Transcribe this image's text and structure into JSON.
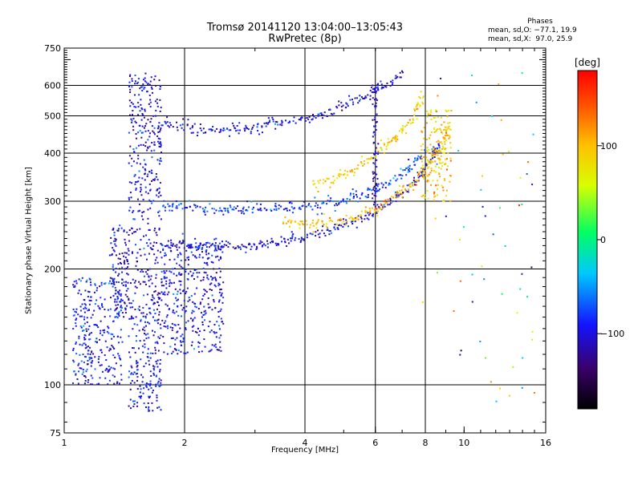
{
  "header": {
    "title_line1": "Tromsø 20141120 13:04:00–13:05:43",
    "title_line2": "RwPretec (8p)"
  },
  "phases_box": {
    "title": "Phases",
    "line1": "mean, sd,O: −77.1, 19.9",
    "line2": "mean, sd,X:  97.0, 25.9"
  },
  "colorbar": {
    "unit_label": "[deg]",
    "ticks": [
      {
        "value": 100,
        "label": "100"
      },
      {
        "value": 0,
        "label": "0"
      },
      {
        "value": -100,
        "label": "−100"
      }
    ],
    "range": [
      -180,
      180
    ]
  },
  "chart_data": {
    "type": "scatter",
    "xlabel": "Frequency [MHz]",
    "ylabel": "Stationary phase Virtual Height [km]",
    "x_scale": "log",
    "y_scale": "log",
    "xlim": [
      1,
      16
    ],
    "ylim": [
      75,
      750
    ],
    "x_ticks": [
      {
        "value": 1,
        "label": "1"
      },
      {
        "value": 2,
        "label": "2"
      },
      {
        "value": 4,
        "label": "4"
      },
      {
        "value": 6,
        "label": "6"
      },
      {
        "value": 8,
        "label": "8"
      },
      {
        "value": 10,
        "label": "10"
      },
      {
        "value": 16,
        "label": "16"
      }
    ],
    "y_ticks": [
      {
        "value": 75,
        "label": "75"
      },
      {
        "value": 100,
        "label": "100"
      },
      {
        "value": 200,
        "label": "200"
      },
      {
        "value": 300,
        "label": "300"
      },
      {
        "value": 400,
        "label": "400"
      },
      {
        "value": 500,
        "label": "500"
      },
      {
        "value": 600,
        "label": "600"
      },
      {
        "value": 750,
        "label": "750"
      }
    ],
    "x_gridlines": [
      2,
      4,
      6,
      8
    ],
    "y_gridlines": [
      100,
      200,
      300,
      400,
      500,
      600
    ],
    "traces": [
      {
        "kind": "band",
        "x": [
          1.45,
          1.75
        ],
        "y": [
          85,
          650
        ],
        "phase": -100
      },
      {
        "kind": "band",
        "x": [
          1.3,
          1.45
        ],
        "y": [
          150,
          260
        ],
        "phase": -105
      },
      {
        "kind": "band",
        "x": [
          1.75,
          2.5
        ],
        "y": [
          120,
          240
        ],
        "phase": -95
      },
      {
        "kind": "band",
        "x": [
          1.05,
          1.4
        ],
        "y": [
          100,
          190
        ],
        "phase": -90
      },
      {
        "kind": "line",
        "points": [
          [
            1.75,
            480
          ],
          [
            2.2,
            460
          ],
          [
            2.6,
            462
          ],
          [
            3.2,
            475
          ],
          [
            4.0,
            490
          ],
          [
            4.6,
            510
          ],
          [
            5.2,
            540
          ],
          [
            5.8,
            570
          ],
          [
            6.5,
            610
          ],
          [
            7.1,
            650
          ]
        ],
        "phase": -100
      },
      {
        "kind": "line",
        "points": [
          [
            1.75,
            230
          ],
          [
            2.5,
            228
          ],
          [
            3.0,
            230
          ],
          [
            3.6,
            236
          ],
          [
            4.2,
            245
          ],
          [
            4.8,
            255
          ],
          [
            5.4,
            268
          ],
          [
            6.0,
            282
          ],
          [
            6.6,
            300
          ],
          [
            7.2,
            320
          ],
          [
            7.8,
            350
          ],
          [
            8.3,
            390
          ],
          [
            8.7,
            430
          ]
        ],
        "phase": -100
      },
      {
        "kind": "line",
        "points": [
          [
            3.5,
            262
          ],
          [
            4.3,
            262
          ],
          [
            5.0,
            268
          ],
          [
            5.6,
            278
          ],
          [
            6.2,
            292
          ],
          [
            6.8,
            310
          ],
          [
            7.5,
            335
          ],
          [
            8.1,
            370
          ],
          [
            8.8,
            420
          ],
          [
            9.2,
            470
          ]
        ],
        "phase": 100
      },
      {
        "kind": "line",
        "points": [
          [
            1.75,
            290
          ],
          [
            3.0,
            285
          ],
          [
            4.0,
            290
          ],
          [
            5.0,
            300
          ],
          [
            6.0,
            320
          ],
          [
            7.0,
            350
          ],
          [
            8.0,
            400
          ]
        ],
        "phase": -80
      },
      {
        "kind": "line",
        "points": [
          [
            4.2,
            330
          ],
          [
            5.0,
            350
          ],
          [
            5.8,
            380
          ],
          [
            6.6,
            430
          ],
          [
            7.3,
            480
          ],
          [
            8.0,
            560
          ]
        ],
        "phase": 90
      },
      {
        "kind": "band",
        "x": [
          5.9,
          6.1
        ],
        "y": [
          290,
          620
        ],
        "phase": -110
      },
      {
        "kind": "band",
        "x": [
          7.8,
          9.3
        ],
        "y": [
          300,
          520
        ],
        "phase": 95
      }
    ]
  }
}
